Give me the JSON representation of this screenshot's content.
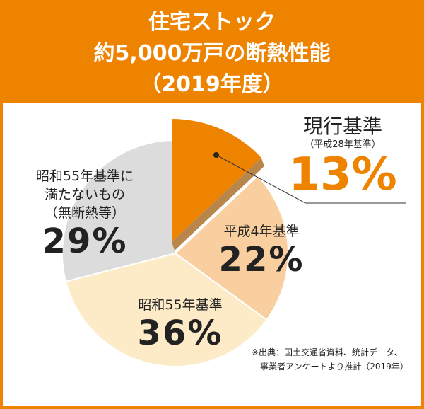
{
  "header": {
    "line1": "住宅ストック",
    "line2": "約5,000万戸の断熱性能",
    "line3": "（2019年度）"
  },
  "chart_data": {
    "type": "pie",
    "title": "住宅ストック 約5,000万戸の断熱性能（2019年度）",
    "slices": [
      {
        "label": "現行基準",
        "sublabel": "（平成28年基準）",
        "value": 13,
        "display": "13%",
        "color": "#ee8300",
        "exploded": true
      },
      {
        "label": "平成4年基準",
        "value": 22,
        "display": "22%",
        "color": "#f9cf9f"
      },
      {
        "label": "昭和55年基準",
        "value": 36,
        "display": "36%",
        "color": "#fdebc7"
      },
      {
        "label": "昭和55年基準に満たないもの",
        "sublabel": "（無断熱等）",
        "label_line1": "昭和55年基準に",
        "label_line2": "満たないもの",
        "value": 29,
        "display": "29%",
        "color": "#dcdcdc"
      }
    ],
    "start": "12 o'clock",
    "direction": "clockwise"
  },
  "source": {
    "line1": "※出典：国土交通省資料、統計データ、",
    "line2": "事業者アンケートより推計（2019年）"
  }
}
